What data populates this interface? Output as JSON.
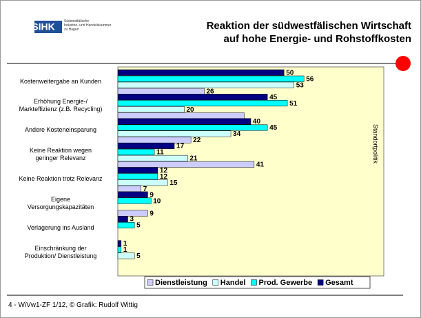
{
  "header": {
    "logo": "SIHK",
    "org": "Südwestfälische\nIndustrie- und Handelskammer\nzu Hagen",
    "section": "Standortpolitik"
  },
  "footer": "4 - WiVw1-ZF 1/12, © Grafik: Rudolf Wittig",
  "chart_data": {
    "type": "bar",
    "orientation": "horizontal",
    "title": "Reaktion der südwestfälischen Wirtschaft\nauf hohe Energie- und Rohstoffkosten",
    "categories": [
      "Kostenweitergabe an Kunden",
      "Erhöhung Energie-/\nMarkteffizienz (z.B. Recycling)",
      "Andere Kosteneinsparung",
      "Keine Reaktion wegen\ngeringer Relevanz",
      "Keine Reaktion trotz Relevanz",
      "Eigene\nVersorgungskapazitäten",
      "Verlagerung ins Ausland",
      "Einschränkung der\nProduktion/ Dienstleistung"
    ],
    "series": [
      {
        "name": "Dienstleistung",
        "color": "#ccccff",
        "values": [
          26,
          38,
          22,
          41,
          7,
          9,
          null,
          null
        ],
        "value_labels": [
          "26",
          null,
          "22",
          "41",
          "7",
          "9",
          null,
          null
        ]
      },
      {
        "name": "Handel",
        "color": "#ccffff",
        "values": [
          53,
          20,
          34,
          21,
          15,
          null,
          null,
          5
        ]
      },
      {
        "name": "Prod. Gewerbe",
        "color": "#00ffff",
        "values": [
          56,
          51,
          45,
          11,
          12,
          10,
          5,
          1
        ]
      },
      {
        "name": "Gesamt",
        "color": "#000080",
        "values": [
          50,
          45,
          40,
          17,
          12,
          9,
          3,
          1
        ]
      }
    ],
    "xlim": [
      0,
      80
    ],
    "legend": "bottom",
    "background": "#ffffcc"
  }
}
